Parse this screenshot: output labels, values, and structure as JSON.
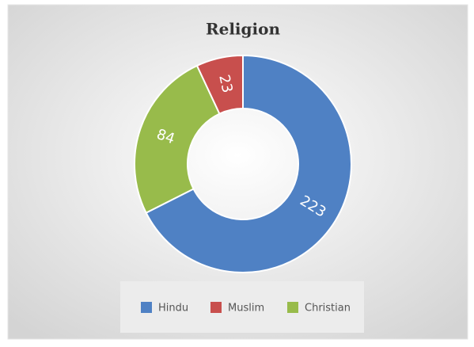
{
  "chart_data": {
    "type": "donut",
    "title": "Religion",
    "categories": [
      "Hindu",
      "Muslim",
      "Christian"
    ],
    "values": [
      223,
      23,
      84
    ],
    "colors": [
      "#4f81c4",
      "#c84f4d",
      "#98bb4b"
    ],
    "legend": "bottom"
  }
}
